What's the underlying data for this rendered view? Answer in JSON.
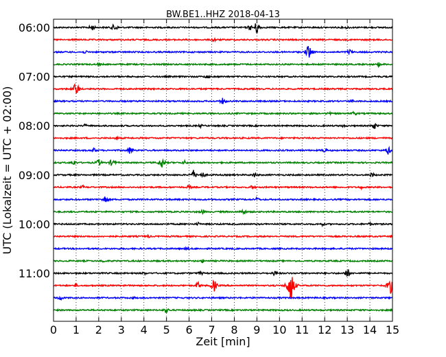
{
  "chart_data": {
    "type": "line",
    "title": "BW.BE1..HHZ 2018-04-13",
    "xlabel": "Zeit  [min]",
    "ylabel": "UTC (Lokalzeit = UTC + 02:00)",
    "xlim": [
      0,
      15
    ],
    "x_ticks": [
      "0",
      "1",
      "2",
      "3",
      "4",
      "5",
      "6",
      "7",
      "8",
      "9",
      "10",
      "11",
      "12",
      "13",
      "14",
      "15"
    ],
    "y_tick_labels": [
      "06:00",
      "07:00",
      "08:00",
      "09:00",
      "10:00",
      "11:00"
    ],
    "grid": "vertical dotted",
    "colors": [
      "#000000",
      "#ff0000",
      "#0000ff",
      "#008000"
    ],
    "series": [
      {
        "start": "06:00",
        "color": "#000000",
        "events": [
          [
            1.7,
            6
          ],
          [
            2.7,
            7
          ],
          [
            8.7,
            5
          ],
          [
            9.0,
            11
          ],
          [
            13.0,
            3
          ]
        ]
      },
      {
        "start": "06:15",
        "color": "#ff0000",
        "events": [
          [
            7.1,
            4
          ]
        ]
      },
      {
        "start": "06:30",
        "color": "#0000ff",
        "events": [
          [
            1.4,
            3
          ],
          [
            11.3,
            13
          ],
          [
            13.1,
            5
          ]
        ]
      },
      {
        "start": "06:45",
        "color": "#008000",
        "events": [
          [
            2.0,
            3
          ],
          [
            14.4,
            4
          ]
        ]
      },
      {
        "start": "07:00",
        "color": "#000000",
        "events": [
          [
            6.8,
            4
          ]
        ]
      },
      {
        "start": "07:15",
        "color": "#ff0000",
        "events": [
          [
            1.0,
            12
          ]
        ]
      },
      {
        "start": "07:30",
        "color": "#0000ff",
        "events": [
          [
            7.5,
            6
          ],
          [
            13.2,
            3
          ]
        ]
      },
      {
        "start": "07:45",
        "color": "#008000",
        "events": [
          [
            12.2,
            3
          ],
          [
            13.3,
            4
          ]
        ]
      },
      {
        "start": "08:00",
        "color": "#000000",
        "events": [
          [
            1.4,
            3
          ],
          [
            6.5,
            3
          ],
          [
            12.8,
            3
          ],
          [
            14.2,
            6
          ]
        ]
      },
      {
        "start": "08:15",
        "color": "#ff0000",
        "events": [
          [
            2.8,
            3
          ]
        ]
      },
      {
        "start": "08:30",
        "color": "#0000ff",
        "events": [
          [
            1.8,
            4
          ],
          [
            3.4,
            7
          ],
          [
            12.0,
            5
          ],
          [
            14.8,
            7
          ]
        ]
      },
      {
        "start": "08:45",
        "color": "#008000",
        "events": [
          [
            0.9,
            5
          ],
          [
            2.0,
            6
          ],
          [
            2.6,
            7
          ],
          [
            4.8,
            9
          ],
          [
            5.8,
            4
          ]
        ]
      },
      {
        "start": "09:00",
        "color": "#000000",
        "events": [
          [
            6.2,
            8
          ],
          [
            6.6,
            5
          ],
          [
            8.9,
            4
          ],
          [
            14.1,
            4
          ]
        ]
      },
      {
        "start": "09:15",
        "color": "#ff0000",
        "events": [
          [
            1.3,
            3
          ],
          [
            6.0,
            4
          ],
          [
            8.8,
            4
          ],
          [
            13.6,
            3
          ]
        ]
      },
      {
        "start": "09:30",
        "color": "#0000ff",
        "events": [
          [
            2.3,
            7
          ],
          [
            9.0,
            4
          ]
        ]
      },
      {
        "start": "09:45",
        "color": "#008000",
        "events": [
          [
            6.6,
            4
          ],
          [
            8.4,
            6
          ]
        ]
      },
      {
        "start": "10:00",
        "color": "#000000",
        "events": [
          [
            6.4,
            3
          ],
          [
            11.9,
            3
          ],
          [
            14.0,
            3
          ]
        ]
      },
      {
        "start": "10:15",
        "color": "#ff0000",
        "events": [
          [
            4.2,
            3
          ]
        ]
      },
      {
        "start": "10:30",
        "color": "#0000ff",
        "events": [
          [
            5.9,
            3
          ]
        ]
      },
      {
        "start": "10:45",
        "color": "#008000",
        "events": [
          [
            2.2,
            3
          ],
          [
            6.6,
            3
          ]
        ]
      },
      {
        "start": "11:00",
        "color": "#000000",
        "events": [
          [
            4.0,
            3
          ],
          [
            6.5,
            4
          ],
          [
            9.8,
            5
          ],
          [
            13.0,
            8
          ]
        ]
      },
      {
        "start": "11:15",
        "color": "#ff0000",
        "events": [
          [
            1.0,
            3
          ],
          [
            6.4,
            6
          ],
          [
            7.1,
            10
          ],
          [
            10.5,
            30
          ],
          [
            14.9,
            14
          ]
        ]
      },
      {
        "start": "11:30",
        "color": "#0000ff",
        "events": [
          [
            0.3,
            5
          ],
          [
            3.5,
            3
          ]
        ]
      },
      {
        "start": "11:45",
        "color": "#008000",
        "events": [
          [
            5.0,
            5
          ]
        ]
      }
    ]
  }
}
